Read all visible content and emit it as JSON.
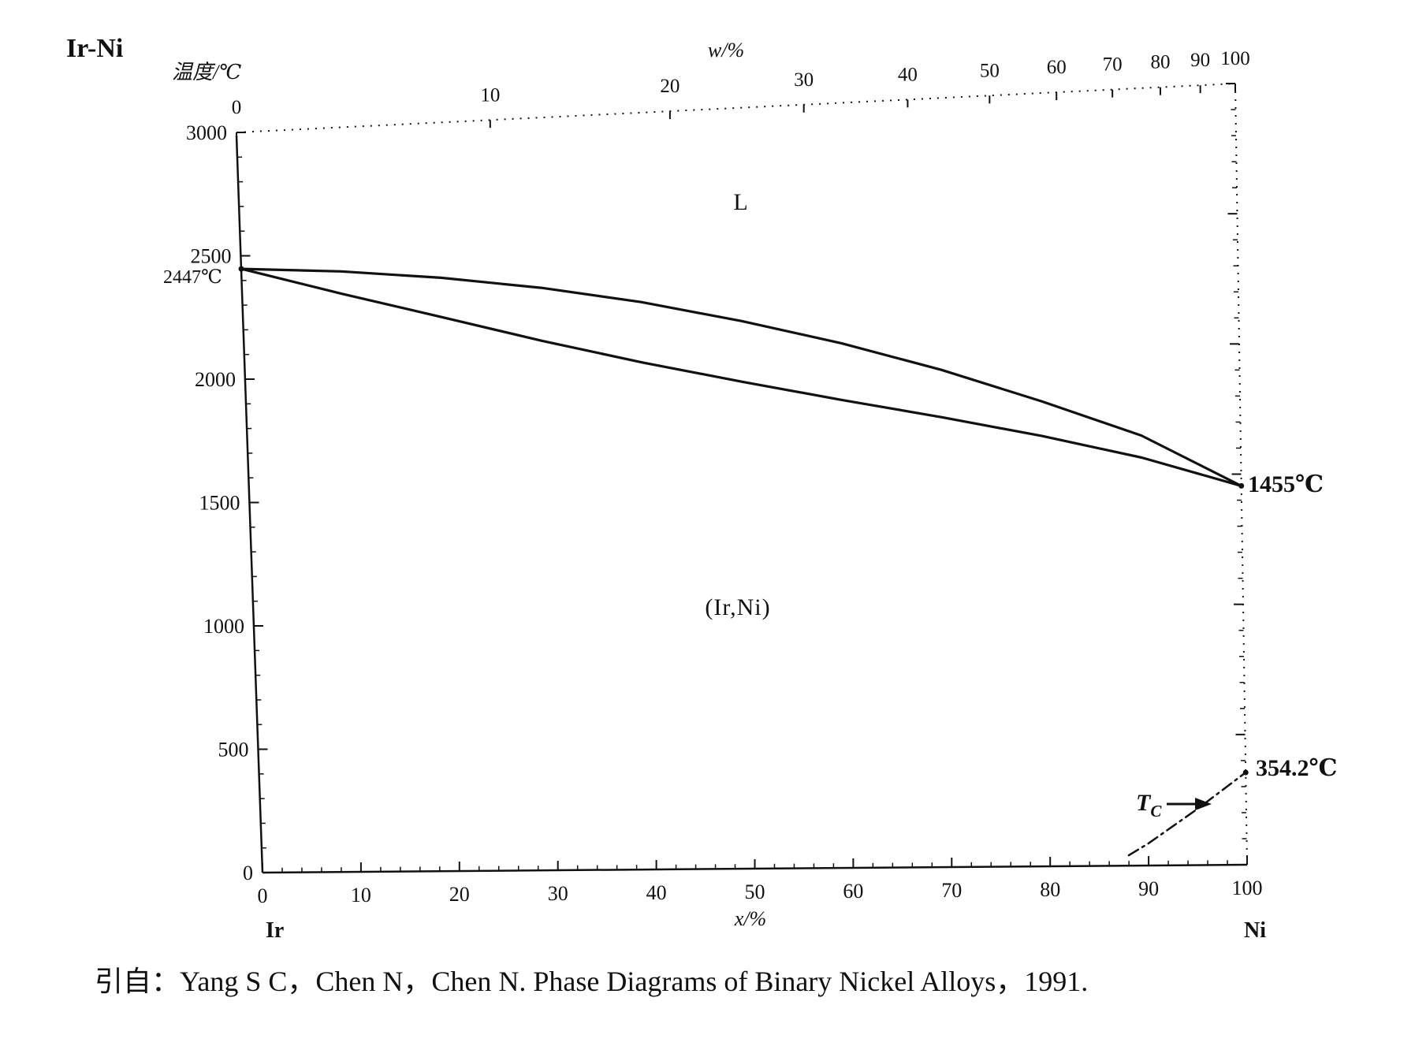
{
  "chart_data": {
    "type": "line",
    "title": "Ir-Ni",
    "xlabel": "x/%",
    "ylabel": "温度/℃",
    "top_axis_label": "w/%",
    "xlim": [
      0,
      100
    ],
    "ylim": [
      0,
      3000
    ],
    "x_ticks": [
      "0",
      "10",
      "20",
      "30",
      "40",
      "50",
      "60",
      "70",
      "80",
      "90",
      "100"
    ],
    "y_ticks": [
      "0",
      "500",
      "1000",
      "1500",
      "2000",
      "2500",
      "3000"
    ],
    "top_ticks": [
      {
        "label": "0",
        "x": 0
      },
      {
        "label": "10",
        "x": 25.4
      },
      {
        "label": "20",
        "x": 43.4
      },
      {
        "label": "30",
        "x": 56.8
      },
      {
        "label": "40",
        "x": 67.2
      },
      {
        "label": "50",
        "x": 75.4
      },
      {
        "label": "60",
        "x": 82.1
      },
      {
        "label": "70",
        "x": 87.7
      },
      {
        "label": "80",
        "x": 92.5
      },
      {
        "label": "90",
        "x": 96.5
      },
      {
        "label": "100",
        "x": 100
      }
    ],
    "left_element": "Ir",
    "right_element": "Ni",
    "series": [
      {
        "values": [
          [
            0,
            2447
          ],
          [
            10,
            2420
          ],
          [
            20,
            2378
          ],
          [
            30,
            2322
          ],
          [
            40,
            2250
          ],
          [
            50,
            2160
          ],
          [
            60,
            2058
          ],
          [
            70,
            1940
          ],
          [
            80,
            1805
          ],
          [
            90,
            1660
          ],
          [
            100,
            1455
          ]
        ]
      },
      {
        "values": [
          [
            0,
            2447
          ],
          [
            10,
            2330
          ],
          [
            20,
            2220
          ],
          [
            30,
            2110
          ],
          [
            40,
            2010
          ],
          [
            50,
            1920
          ],
          [
            60,
            1835
          ],
          [
            70,
            1755
          ],
          [
            80,
            1670
          ],
          [
            90,
            1575
          ],
          [
            100,
            1455
          ]
        ]
      },
      {
        "values": [
          [
            88,
            40
          ],
          [
            90,
            85
          ],
          [
            95,
            215
          ],
          [
            100,
            354.2
          ]
        ],
        "dashed": true
      }
    ],
    "annotations": {
      "ir_melting": "2447℃",
      "ni_melting": "1455℃",
      "ni_curie": "354.2℃",
      "tc_label": "T",
      "tc_subscript": "C",
      "liquid_label": "L",
      "solid_label": "(Ir,Ni)"
    },
    "grid": false
  },
  "citation": "引自：Yang S C，Chen N，Chen N.  Phase Diagrams of Binary Nickel Alloys，1991."
}
